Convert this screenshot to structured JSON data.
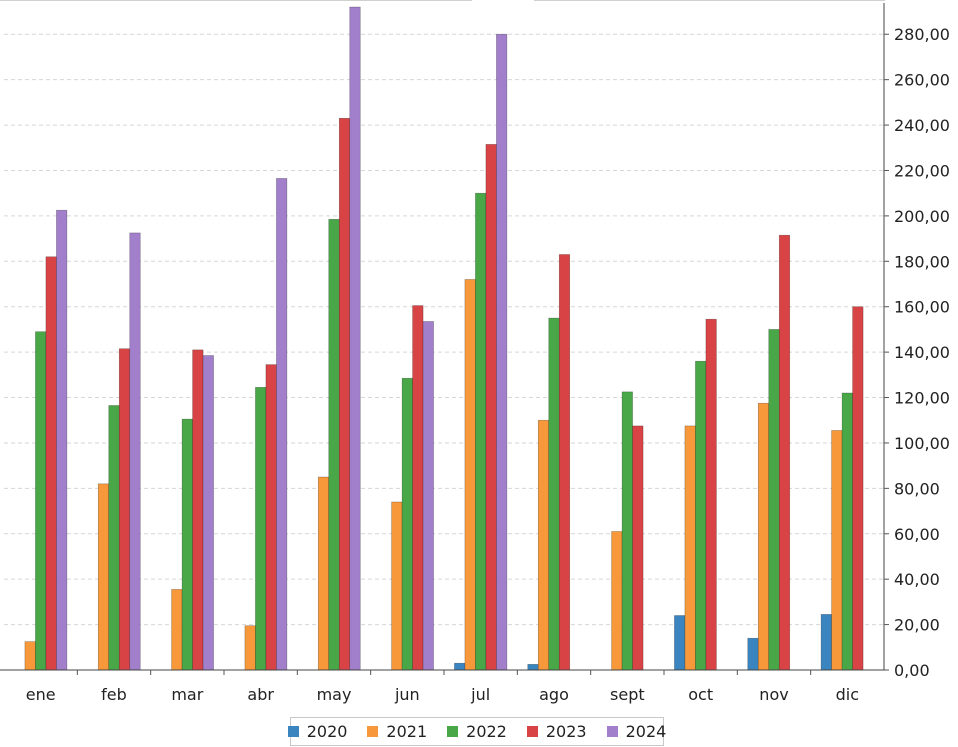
{
  "chart_data": {
    "type": "bar",
    "categories": [
      "ene",
      "feb",
      "mar",
      "abr",
      "may",
      "jun",
      "jul",
      "ago",
      "sept",
      "oct",
      "nov",
      "dic"
    ],
    "series": [
      {
        "name": "2020",
        "color": "#3a85c0",
        "values": [
          0,
          0,
          0,
          0,
          0,
          0,
          3,
          2.5,
          0,
          24,
          14,
          24.5
        ]
      },
      {
        "name": "2021",
        "color": "#f7983a",
        "values": [
          12.5,
          82,
          35.5,
          19.5,
          85,
          74,
          172,
          110,
          61,
          107.5,
          117.5,
          105.5
        ]
      },
      {
        "name": "2022",
        "color": "#4aa748",
        "values": [
          149,
          116.5,
          110.5,
          124.5,
          198.5,
          128.5,
          210,
          155,
          122.5,
          136,
          150,
          122
        ]
      },
      {
        "name": "2023",
        "color": "#d84445",
        "values": [
          182,
          141.5,
          141,
          134.5,
          243,
          160.5,
          231.5,
          183,
          107.5,
          154.5,
          191.5,
          160
        ]
      },
      {
        "name": "2024",
        "color": "#a27fcb",
        "values": [
          202.5,
          192.5,
          138.5,
          216.5,
          292,
          153.5,
          280,
          null,
          null,
          null,
          null,
          null
        ]
      }
    ],
    "y_ticks": [
      "0,00",
      "20,00",
      "40,00",
      "60,00",
      "80,00",
      "100,00",
      "120,00",
      "140,00",
      "160,00",
      "180,00",
      "200,00",
      "220,00",
      "240,00",
      "260,00",
      "280,00"
    ],
    "ylim": [
      0,
      292
    ],
    "y_axis_position": "right",
    "grid": true,
    "legend_position": "bottom"
  }
}
